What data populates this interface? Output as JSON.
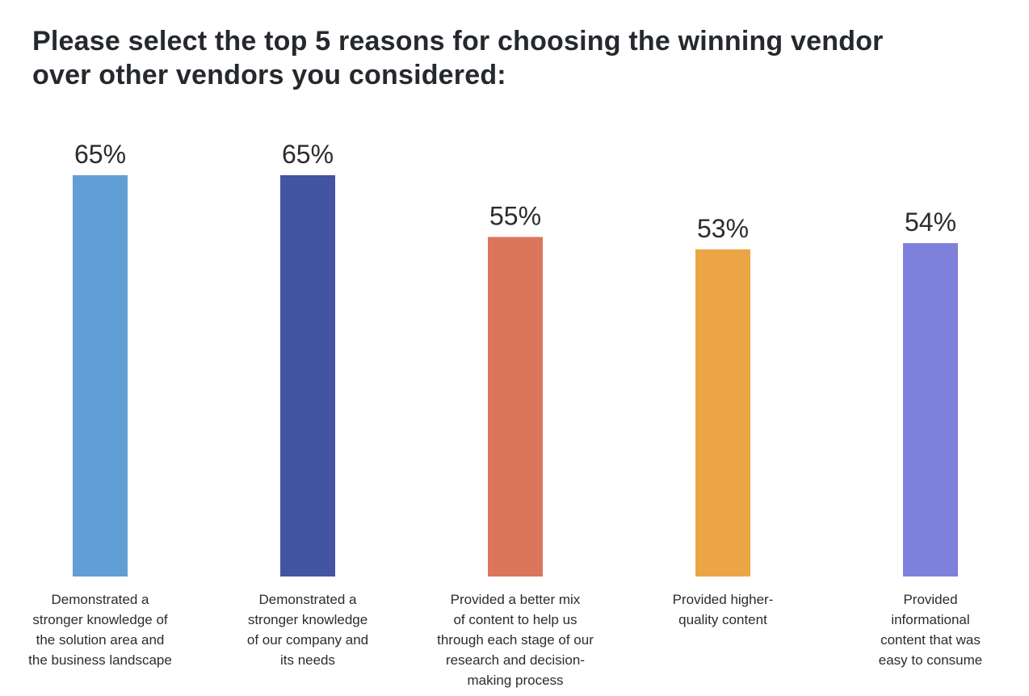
{
  "title": "Please select the top 5 reasons for choosing the winning vendor\nover other vendors you considered:",
  "chart_data": {
    "type": "bar",
    "title": "Please select the top 5 reasons for choosing the winning vendor over other vendors you considered:",
    "xlabel": "",
    "ylabel": "",
    "ylim": [
      0,
      65
    ],
    "grid": false,
    "categories": [
      "Demonstrated a stronger knowledge of the solution area and the business landscape",
      "Demonstrated a stronger knowledge of our company and its needs",
      "Provided a better mix of content to help us through each stage of our research and decision-making process",
      "Provided higher-quality content",
      "Provided informational content that was easy to consume"
    ],
    "category_lines": [
      [
        "Demonstrated a",
        "stronger knowledge of",
        "the solution area and",
        "the business landscape"
      ],
      [
        "Demonstrated a",
        "stronger knowledge",
        "of our company and",
        "its needs"
      ],
      [
        "Provided a better mix",
        "of content to help us",
        "through each stage of our",
        "research and decision-",
        "making process"
      ],
      [
        "Provided higher-",
        "quality content"
      ],
      [
        "Provided",
        "informational",
        "content that was",
        "easy to consume"
      ]
    ],
    "values": [
      65,
      65,
      55,
      53,
      54
    ],
    "value_labels": [
      "65%",
      "65%",
      "55%",
      "53%",
      "54%"
    ],
    "colors": [
      "#629ed6",
      "#4354a2",
      "#dc765b",
      "#eca545",
      "#7f80dc"
    ]
  }
}
